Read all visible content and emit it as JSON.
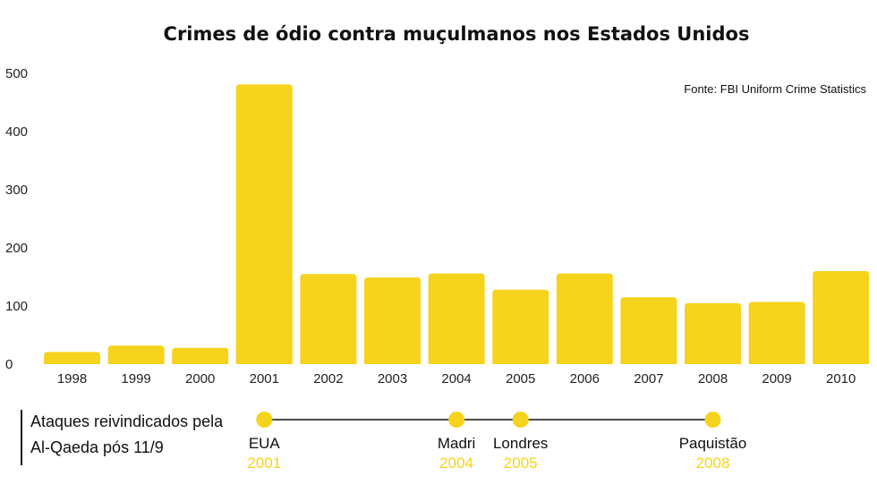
{
  "chart_data": {
    "type": "bar",
    "title": "Crimes de ódio contra muçulmanos nos Estados Unidos",
    "source": "Fonte: FBI Uniform Crime Statistics",
    "categories": [
      "1998",
      "1999",
      "2000",
      "2001",
      "2002",
      "2003",
      "2004",
      "2005",
      "2006",
      "2007",
      "2008",
      "2009",
      "2010"
    ],
    "values": [
      21,
      32,
      28,
      481,
      155,
      149,
      156,
      128,
      156,
      115,
      105,
      107,
      160
    ],
    "yticks": [
      "0",
      "100",
      "200",
      "300",
      "400",
      "500"
    ],
    "ylim": [
      0,
      500
    ],
    "bar_color": "#f6d31c",
    "grid": false
  },
  "timeline": {
    "heading": "Ataques reivindicados pela Al-Qaeda pós 11/9",
    "color": "#f6d31c",
    "events": [
      {
        "name": "EUA",
        "year": "2001"
      },
      {
        "name": "Madri",
        "year": "2004"
      },
      {
        "name": "Londres",
        "year": "2005"
      },
      {
        "name": "Paquistão",
        "year": "2008"
      }
    ]
  }
}
